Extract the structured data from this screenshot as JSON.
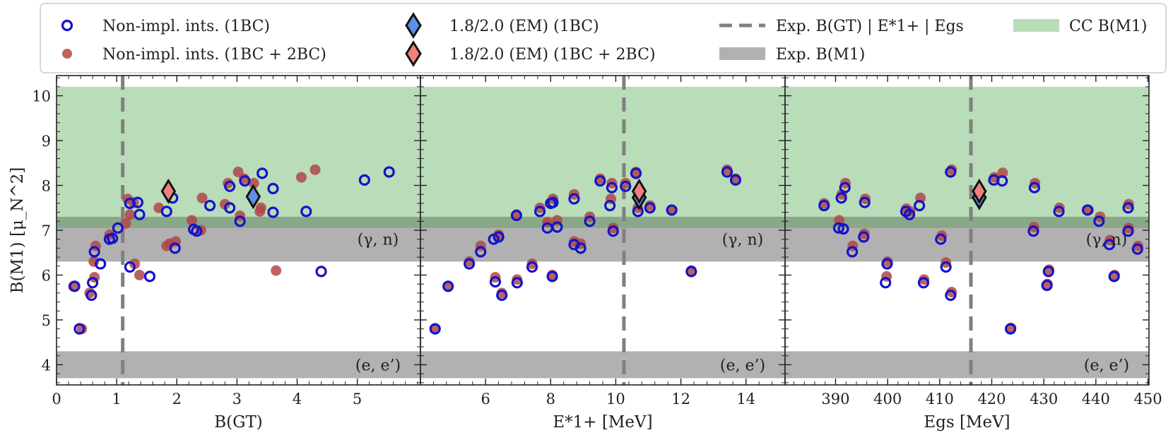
{
  "colors": {
    "green_band": "#b9dcb9",
    "gray_band": "#b1b1b1",
    "overlap_band": "#89a889",
    "dashed_line": "#808080",
    "open_circle": "#1414c8",
    "filled_circle": "#b14747",
    "diamond_1bc": "#5b8fe8",
    "diamond_2bc": "#f08080",
    "frame": "#222222"
  },
  "legend": {
    "open_circle": "Non-impl. ints. (1BC)",
    "filled_circle": "Non-impl. ints. (1BC + 2BC)",
    "diamond_1bc": "1.8/2.0 (EM) (1BC)",
    "diamond_2bc": "1.8/2.0 (EM) (1BC + 2BC)",
    "dashed": "Exp. B(GT) | E*1+ | Egs",
    "gray": "Exp. B(M1)",
    "green": "CC B(M1)"
  },
  "chart_data": {
    "type": "scatter",
    "title": "",
    "ylabel": "B(M1) [μ_N^2]",
    "ylim": [
      3.55,
      10.45
    ],
    "yticks": [
      "4",
      "5",
      "6",
      "7",
      "8",
      "9",
      "10"
    ],
    "bands": {
      "cc_bm1": [
        7.05,
        10.2
      ],
      "exp_gamma_n": [
        6.3,
        7.3
      ],
      "exp_e_eprime": [
        3.7,
        4.3
      ]
    },
    "band_labels": {
      "gamma_n": "(γ, n)",
      "e_eprime": "(e, e’)"
    },
    "panels": [
      {
        "id": "bgt",
        "xlabel": "B(GT)",
        "xlim": [
          0,
          6.05
        ],
        "xticks": [
          "0",
          "1",
          "2",
          "3",
          "4",
          "5"
        ],
        "exp_x": 1.1,
        "diamond_1bc": [
          3.27,
          7.75
        ],
        "diamond_2bc": [
          1.86,
          7.87
        ],
        "open": [
          [
            0.3,
            5.75
          ],
          [
            0.38,
            4.8
          ],
          [
            0.58,
            5.55
          ],
          [
            0.6,
            5.83
          ],
          [
            0.63,
            6.52
          ],
          [
            0.73,
            6.25
          ],
          [
            0.88,
            6.8
          ],
          [
            0.93,
            6.82
          ],
          [
            1.02,
            7.05
          ],
          [
            1.22,
            7.6
          ],
          [
            1.22,
            6.18
          ],
          [
            1.35,
            7.62
          ],
          [
            1.38,
            7.35
          ],
          [
            1.55,
            5.97
          ],
          [
            1.83,
            7.42
          ],
          [
            1.93,
            7.72
          ],
          [
            1.97,
            6.6
          ],
          [
            2.28,
            7.02
          ],
          [
            2.33,
            6.98
          ],
          [
            2.55,
            7.55
          ],
          [
            2.88,
            7.5
          ],
          [
            2.88,
            7.98
          ],
          [
            3.05,
            7.2
          ],
          [
            3.13,
            8.1
          ],
          [
            3.42,
            8.27
          ],
          [
            3.6,
            7.93
          ],
          [
            3.6,
            7.4
          ],
          [
            4.15,
            7.42
          ],
          [
            4.4,
            6.08
          ],
          [
            5.12,
            8.12
          ],
          [
            5.53,
            8.3
          ]
        ],
        "filled": [
          [
            0.28,
            5.75
          ],
          [
            0.42,
            4.8
          ],
          [
            0.55,
            5.6
          ],
          [
            0.62,
            6.3
          ],
          [
            0.63,
            5.95
          ],
          [
            0.65,
            6.65
          ],
          [
            0.88,
            6.9
          ],
          [
            1.15,
            7.15
          ],
          [
            1.18,
            7.7
          ],
          [
            1.22,
            7.35
          ],
          [
            1.28,
            7.62
          ],
          [
            1.3,
            6.25
          ],
          [
            1.38,
            6.0
          ],
          [
            1.7,
            7.5
          ],
          [
            1.83,
            6.65
          ],
          [
            1.88,
            6.7
          ],
          [
            1.98,
            6.75
          ],
          [
            2.25,
            7.22
          ],
          [
            2.4,
            7.0
          ],
          [
            2.42,
            7.72
          ],
          [
            2.8,
            7.58
          ],
          [
            2.85,
            8.05
          ],
          [
            3.02,
            8.3
          ],
          [
            3.05,
            7.32
          ],
          [
            3.12,
            8.15
          ],
          [
            3.28,
            8.05
          ],
          [
            3.4,
            7.5
          ],
          [
            3.38,
            7.42
          ],
          [
            3.65,
            6.1
          ],
          [
            4.07,
            8.18
          ],
          [
            4.3,
            8.35
          ]
        ]
      },
      {
        "id": "e1",
        "xlabel": "E*1+ [MeV]",
        "xlim": [
          4.0,
          15.2
        ],
        "xticks": [
          "6",
          "8",
          "10",
          "12",
          "14"
        ],
        "exp_x": 10.25,
        "diamond_1bc": [
          10.72,
          7.73
        ],
        "diamond_2bc": [
          10.72,
          7.87
        ],
        "open": [
          [
            4.45,
            4.8
          ],
          [
            4.85,
            5.75
          ],
          [
            5.5,
            6.25
          ],
          [
            5.85,
            6.52
          ],
          [
            6.25,
            6.8
          ],
          [
            6.3,
            5.85
          ],
          [
            6.4,
            6.85
          ],
          [
            6.5,
            5.55
          ],
          [
            6.95,
            7.33
          ],
          [
            6.97,
            5.83
          ],
          [
            7.43,
            6.18
          ],
          [
            7.67,
            7.42
          ],
          [
            7.9,
            7.05
          ],
          [
            8.0,
            7.6
          ],
          [
            8.05,
            5.97
          ],
          [
            8.07,
            7.62
          ],
          [
            8.2,
            7.07
          ],
          [
            8.72,
            6.68
          ],
          [
            8.72,
            7.7
          ],
          [
            8.92,
            6.6
          ],
          [
            9.2,
            7.2
          ],
          [
            9.52,
            8.1
          ],
          [
            9.82,
            7.55
          ],
          [
            9.88,
            7.95
          ],
          [
            9.92,
            6.98
          ],
          [
            10.3,
            7.98
          ],
          [
            10.62,
            8.27
          ],
          [
            10.68,
            7.42
          ],
          [
            11.05,
            7.5
          ],
          [
            11.72,
            7.45
          ],
          [
            12.32,
            6.08
          ],
          [
            13.42,
            8.3
          ],
          [
            13.68,
            8.12
          ]
        ],
        "filled": [
          [
            4.45,
            4.8
          ],
          [
            4.85,
            5.75
          ],
          [
            5.5,
            6.3
          ],
          [
            5.85,
            6.65
          ],
          [
            6.3,
            5.95
          ],
          [
            6.4,
            6.9
          ],
          [
            6.5,
            5.6
          ],
          [
            6.95,
            7.35
          ],
          [
            6.97,
            5.9
          ],
          [
            7.43,
            6.25
          ],
          [
            7.67,
            7.5
          ],
          [
            7.9,
            7.18
          ],
          [
            8.05,
            6.0
          ],
          [
            8.07,
            7.7
          ],
          [
            8.2,
            7.22
          ],
          [
            8.72,
            6.75
          ],
          [
            8.72,
            7.8
          ],
          [
            8.92,
            6.7
          ],
          [
            9.2,
            7.3
          ],
          [
            9.52,
            8.15
          ],
          [
            9.85,
            7.7
          ],
          [
            9.88,
            8.05
          ],
          [
            9.92,
            7.05
          ],
          [
            10.3,
            8.05
          ],
          [
            10.62,
            8.3
          ],
          [
            10.68,
            7.5
          ],
          [
            11.05,
            7.55
          ],
          [
            11.72,
            7.45
          ],
          [
            12.32,
            6.1
          ],
          [
            13.42,
            8.35
          ],
          [
            13.68,
            8.15
          ]
        ]
      },
      {
        "id": "egs",
        "xlabel": "Egs [MeV]",
        "xlim": [
          380.3,
          450.2
        ],
        "xticks": [
          "390",
          "400",
          "410",
          "420",
          "430",
          "440",
          "450"
        ],
        "exp_x": 416.0,
        "diamond_1bc": [
          417.6,
          7.73
        ],
        "diamond_2bc": [
          417.6,
          7.87
        ],
        "open": [
          [
            387.8,
            7.55
          ],
          [
            390.6,
            7.05
          ],
          [
            391.1,
            7.72
          ],
          [
            391.5,
            7.03
          ],
          [
            391.8,
            7.95
          ],
          [
            393.2,
            6.52
          ],
          [
            395.4,
            6.85
          ],
          [
            395.6,
            7.62
          ],
          [
            399.6,
            5.83
          ],
          [
            399.9,
            6.25
          ],
          [
            403.5,
            7.42
          ],
          [
            404.2,
            7.35
          ],
          [
            406.1,
            7.55
          ],
          [
            406.9,
            5.83
          ],
          [
            410.2,
            6.8
          ],
          [
            411.2,
            6.18
          ],
          [
            412.1,
            5.55
          ],
          [
            412.1,
            8.3
          ],
          [
            420.4,
            8.12
          ],
          [
            422.0,
            8.1
          ],
          [
            423.6,
            4.8
          ],
          [
            428.0,
            6.98
          ],
          [
            428.2,
            7.95
          ],
          [
            430.6,
            5.77
          ],
          [
            430.9,
            6.08
          ],
          [
            432.9,
            7.42
          ],
          [
            438.4,
            7.45
          ],
          [
            440.6,
            7.2
          ],
          [
            442.6,
            6.68
          ],
          [
            443.5,
            5.97
          ],
          [
            446.2,
            6.98
          ],
          [
            446.2,
            7.5
          ],
          [
            448.0,
            6.58
          ]
        ],
        "filled": [
          [
            387.8,
            7.6
          ],
          [
            390.7,
            7.22
          ],
          [
            391.2,
            7.8
          ],
          [
            391.9,
            8.05
          ],
          [
            393.3,
            6.65
          ],
          [
            395.5,
            6.92
          ],
          [
            395.7,
            7.7
          ],
          [
            399.8,
            5.97
          ],
          [
            400.0,
            6.3
          ],
          [
            403.6,
            7.48
          ],
          [
            404.3,
            7.42
          ],
          [
            406.3,
            7.72
          ],
          [
            407.0,
            5.9
          ],
          [
            410.4,
            6.88
          ],
          [
            411.2,
            6.28
          ],
          [
            412.3,
            5.62
          ],
          [
            412.3,
            8.35
          ],
          [
            420.5,
            8.18
          ],
          [
            422.1,
            8.28
          ],
          [
            423.7,
            4.82
          ],
          [
            428.1,
            7.07
          ],
          [
            428.3,
            8.05
          ],
          [
            430.7,
            5.8
          ],
          [
            431.0,
            6.12
          ],
          [
            433.0,
            7.5
          ],
          [
            438.6,
            7.45
          ],
          [
            440.8,
            7.3
          ],
          [
            442.7,
            6.78
          ],
          [
            443.6,
            6.0
          ],
          [
            446.3,
            7.05
          ],
          [
            446.3,
            7.58
          ],
          [
            448.1,
            6.65
          ]
        ]
      }
    ]
  }
}
